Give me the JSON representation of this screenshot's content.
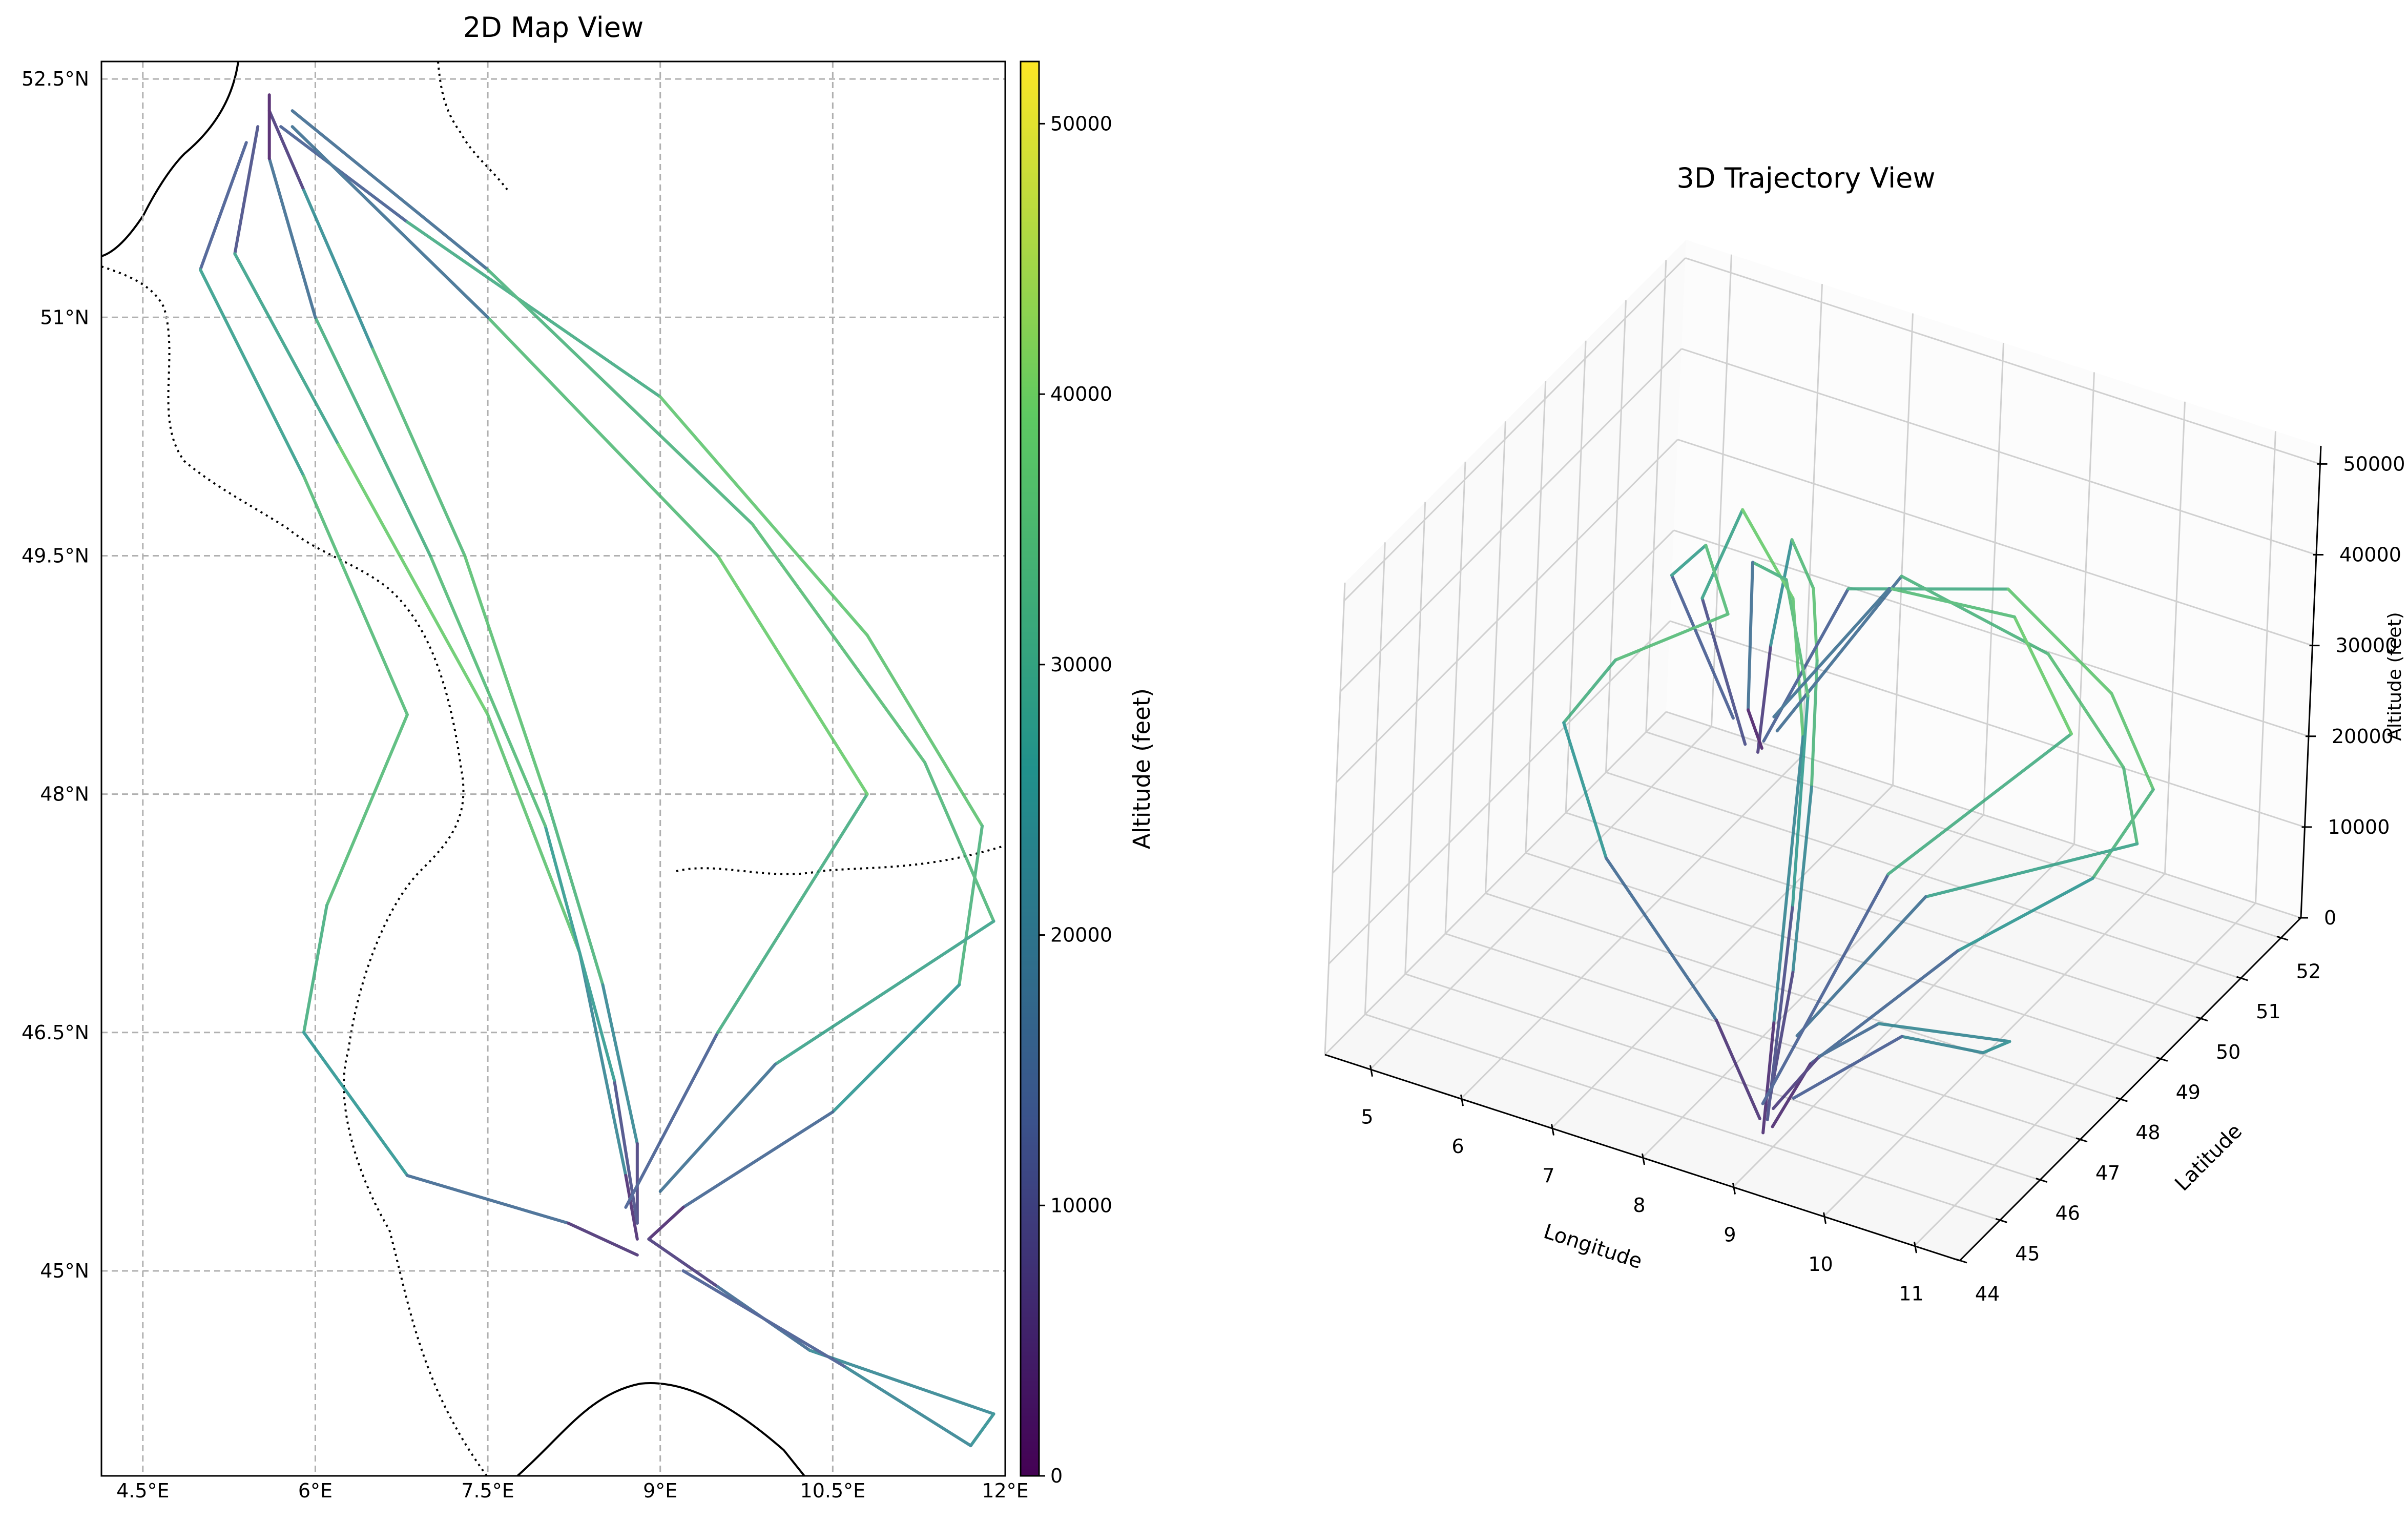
{
  "chart_data": [
    {
      "type": "map",
      "title": "2D Map View",
      "xlim": [
        4.14,
        12
      ],
      "ylim": [
        43.71,
        52.61
      ],
      "xticks": [
        {
          "value": 4.5,
          "label": "4.5°E"
        },
        {
          "value": 6,
          "label": "6°E"
        },
        {
          "value": 7.5,
          "label": "7.5°E"
        },
        {
          "value": 9,
          "label": "9°E"
        },
        {
          "value": 10.5,
          "label": "10.5°E"
        },
        {
          "value": 12,
          "label": "12°E"
        }
      ],
      "yticks": [
        {
          "value": 45,
          "label": "45°N"
        },
        {
          "value": 46.5,
          "label": "46.5°N"
        },
        {
          "value": 48,
          "label": "48°N"
        },
        {
          "value": 49.5,
          "label": "49.5°N"
        },
        {
          "value": 51,
          "label": "51°N"
        },
        {
          "value": 52.5,
          "label": "52.5°N"
        }
      ],
      "grid": true,
      "colormap": "viridis",
      "colorbar_label": "Altitude (feet)",
      "clim": [
        0,
        52300
      ],
      "cticks": [
        0,
        10000,
        20000,
        30000,
        40000,
        50000
      ],
      "series": [
        {
          "lon": [
            5.6,
            5.9,
            6.5,
            7.3,
            8.0,
            8.5,
            8.8,
            8.8
          ],
          "lat": [
            52.3,
            51.8,
            50.8,
            49.5,
            48.0,
            46.8,
            45.8,
            45.3
          ],
          "alt": [
            0,
            15000,
            33000,
            36000,
            37000,
            30000,
            15000,
            2000
          ]
        },
        {
          "lon": [
            5.5,
            5.3,
            6.2,
            7.5,
            8.3,
            8.7,
            8.8
          ],
          "lat": [
            52.2,
            51.4,
            50.2,
            48.5,
            47.0,
            45.6,
            45.2
          ],
          "alt": [
            1000,
            20000,
            38000,
            40000,
            34000,
            10000,
            0
          ]
        },
        {
          "lon": [
            5.7,
            6.8,
            9.0,
            10.8,
            11.8,
            11.6,
            10.5,
            9.2,
            8.9
          ],
          "lat": [
            52.2,
            51.6,
            50.5,
            49.0,
            47.8,
            46.8,
            46.0,
            45.4,
            45.2
          ],
          "alt": [
            2000,
            25000,
            37000,
            38000,
            36000,
            30000,
            22000,
            8000,
            1000
          ]
        },
        {
          "lon": [
            5.8,
            7.5,
            9.8,
            11.3,
            11.9,
            10.0,
            9.0
          ],
          "lat": [
            52.3,
            51.3,
            49.7,
            48.2,
            47.2,
            46.3,
            45.5
          ],
          "alt": [
            3000,
            30000,
            36000,
            35000,
            33000,
            25000,
            10000
          ]
        },
        {
          "lon": [
            5.4,
            5.0,
            5.9,
            6.8,
            6.1,
            5.9,
            6.8,
            8.2,
            8.8
          ],
          "lat": [
            52.1,
            51.3,
            50.0,
            48.5,
            47.3,
            46.5,
            45.6,
            45.3,
            45.1
          ],
          "alt": [
            4000,
            22000,
            34000,
            36000,
            34000,
            30000,
            22000,
            10000,
            2000
          ]
        },
        {
          "lon": [
            8.9,
            9.5,
            10.3,
            11.9,
            11.7,
            10.6,
            9.2
          ],
          "lat": [
            45.2,
            44.9,
            44.5,
            44.1,
            43.9,
            44.4,
            45.0
          ],
          "alt": [
            3000,
            12000,
            20000,
            25000,
            24000,
            20000,
            6000
          ]
        },
        {
          "lon": [
            8.8,
            8.6,
            8.0,
            7.0,
            6.0,
            5.6,
            5.6
          ],
          "lat": [
            45.3,
            46.2,
            47.8,
            49.5,
            51.0,
            52.0,
            52.4
          ],
          "alt": [
            1000,
            20000,
            34000,
            36000,
            28000,
            6000,
            0
          ]
        },
        {
          "lon": [
            8.7,
            9.5,
            10.8,
            9.5,
            7.5,
            5.8
          ],
          "lat": [
            45.4,
            46.5,
            48.0,
            49.5,
            51.0,
            52.2
          ],
          "alt": [
            2000,
            25000,
            38000,
            40000,
            30000,
            5000
          ]
        }
      ]
    },
    {
      "type": "trajectory3d",
      "title": "3D Trajectory View",
      "xlabel": "Longitude",
      "ylabel": "Latitude",
      "zlabel": "Altitude (feet)",
      "xlim": [
        4.5,
        11.5
      ],
      "ylim": [
        44,
        52.5
      ],
      "zlim": [
        0,
        52000
      ],
      "xticks": [
        5,
        6,
        7,
        8,
        9,
        10,
        11
      ],
      "yticks": [
        44,
        45,
        46,
        47,
        48,
        49,
        50,
        51,
        52
      ],
      "zticks": [
        0,
        10000,
        20000,
        30000,
        40000,
        50000
      ],
      "grid": true
    }
  ]
}
